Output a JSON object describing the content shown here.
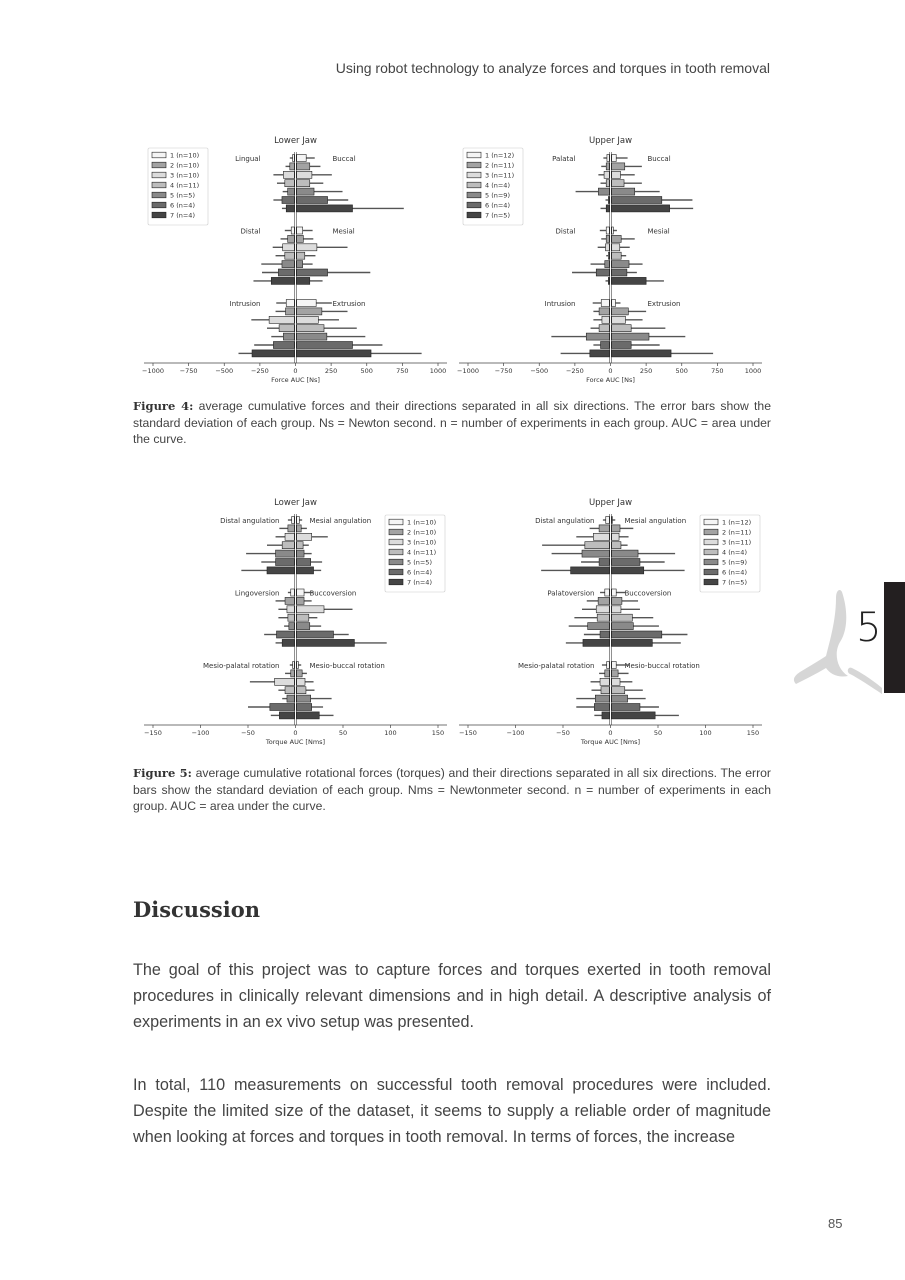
{
  "header": {
    "running_title": "Using robot technology to analyze forces and torques in tooth removal"
  },
  "colors": {
    "group_fills": [
      "#f4f4f4",
      "#a3a3a3",
      "#dcdcdc",
      "#bdbdbd",
      "#8a8a8a",
      "#6b6b6b",
      "#454545"
    ],
    "error_bar": "#555555",
    "chapter_tab": "#231f20"
  },
  "chart_data": [
    {
      "id": "fig4-lower",
      "type": "bar",
      "orientation": "horizontal-diverging",
      "title": "Lower Jaw",
      "xlabel": "Force AUC [Ns]",
      "xlim": [
        -1000,
        1000
      ],
      "xticks": [
        "−1000",
        "−750",
        "−500",
        "−250",
        "0",
        "250",
        "500",
        "750",
        "1000"
      ],
      "xtick_values": [
        -1000,
        -750,
        -500,
        -250,
        0,
        250,
        500,
        750,
        1000
      ],
      "legend": [
        "1 (n=10)",
        "2 (n=10)",
        "3 (n=10)",
        "4 (n=11)",
        "5 (n=5)",
        "6 (n=4)",
        "7 (n=4)"
      ],
      "legend_placement": "top-left",
      "groups": [
        {
          "neg_label": "Lingual",
          "pos_label": "Buccal",
          "neg": [
            -20,
            -40,
            -85,
            -75,
            -55,
            -95,
            -65
          ],
          "neg_sd": [
            20,
            30,
            70,
            55,
            35,
            60,
            30
          ],
          "pos": [
            75,
            100,
            115,
            100,
            130,
            225,
            400
          ],
          "pos_sd": [
            60,
            75,
            140,
            95,
            200,
            145,
            360
          ]
        },
        {
          "neg_label": "Distal",
          "pos_label": "Mesial",
          "neg": [
            -30,
            -55,
            -90,
            -75,
            -95,
            -120,
            -170
          ],
          "neg_sd": [
            45,
            50,
            70,
            65,
            145,
            115,
            125
          ],
          "pos": [
            50,
            55,
            150,
            65,
            50,
            225,
            100
          ],
          "pos_sd": [
            70,
            70,
            215,
            75,
            70,
            300,
            90
          ]
        },
        {
          "neg_label": "Intrusion",
          "pos_label": "Extrusion",
          "neg": [
            -65,
            -70,
            -185,
            -115,
            -85,
            -155,
            -305
          ],
          "neg_sd": [
            70,
            70,
            125,
            85,
            85,
            135,
            95
          ],
          "pos": [
            145,
            185,
            160,
            200,
            220,
            400,
            530
          ],
          "pos_sd": [
            110,
            180,
            145,
            230,
            270,
            210,
            355
          ]
        }
      ]
    },
    {
      "id": "fig4-upper",
      "type": "bar",
      "orientation": "horizontal-diverging",
      "title": "Upper Jaw",
      "xlabel": "Force AUC [Ns]",
      "xlim": [
        -1000,
        1000
      ],
      "xticks": [
        "−1000",
        "−750",
        "−500",
        "−250",
        "0",
        "250",
        "500",
        "750",
        "1000"
      ],
      "xtick_values": [
        -1000,
        -750,
        -500,
        -250,
        0,
        250,
        500,
        750,
        1000
      ],
      "legend": [
        "1 (n=12)",
        "2 (n=11)",
        "3 (n=11)",
        "4 (n=4)",
        "5 (n=9)",
        "6 (n=4)",
        "7 (n=5)"
      ],
      "legend_placement": "top-left",
      "groups": [
        {
          "neg_label": "Palatal",
          "pos_label": "Buccal",
          "neg": [
            -25,
            -30,
            -45,
            -30,
            -85,
            -15,
            -30
          ],
          "neg_sd": [
            25,
            35,
            40,
            40,
            160,
            20,
            40
          ],
          "pos": [
            40,
            100,
            70,
            95,
            170,
            360,
            415
          ],
          "pos_sd": [
            80,
            120,
            100,
            125,
            175,
            215,
            165
          ]
        },
        {
          "neg_label": "Distal",
          "pos_label": "Mesial",
          "neg": [
            -30,
            -30,
            -35,
            -15,
            -40,
            -100,
            -15
          ],
          "neg_sd": [
            45,
            35,
            55,
            15,
            100,
            170,
            20
          ],
          "pos": [
            20,
            75,
            65,
            75,
            130,
            115,
            250
          ],
          "pos_sd": [
            25,
            95,
            70,
            35,
            95,
            70,
            125
          ]
        },
        {
          "neg_label": "Intrusion",
          "pos_label": "Extrusion",
          "neg": [
            -65,
            -80,
            -60,
            -80,
            -170,
            -70,
            -145
          ],
          "neg_sd": [
            60,
            40,
            60,
            60,
            245,
            50,
            205
          ],
          "pos": [
            35,
            125,
            105,
            145,
            270,
            145,
            425
          ],
          "pos_sd": [
            35,
            125,
            120,
            240,
            255,
            200,
            295
          ]
        }
      ]
    },
    {
      "id": "fig5-lower",
      "type": "bar",
      "orientation": "horizontal-diverging",
      "title": "Lower Jaw",
      "xlabel": "Torque AUC [Nms]",
      "xlim": [
        -150,
        150
      ],
      "xticks": [
        "−150",
        "−100",
        "−50",
        "0",
        "50",
        "100",
        "150"
      ],
      "xtick_values": [
        -150,
        -100,
        -50,
        0,
        50,
        100,
        150
      ],
      "legend": [
        "1 (n=10)",
        "2 (n=10)",
        "3 (n=10)",
        "4 (n=11)",
        "5 (n=5)",
        "6 (n=4)",
        "7 (n=4)"
      ],
      "legend_placement": "top-right",
      "groups": [
        {
          "neg_label": "Distal angulation",
          "pos_label": "Mesial angulation",
          "neg": [
            -4,
            -8,
            -11,
            -14,
            -21,
            -21,
            -30
          ],
          "neg_sd": [
            4,
            9,
            10,
            16,
            31,
            15,
            27
          ],
          "pos": [
            4,
            6,
            17,
            8,
            9,
            16,
            19
          ],
          "pos_sd": [
            3,
            6,
            17,
            6,
            8,
            12,
            8
          ]
        },
        {
          "neg_label": "Lingoversion",
          "pos_label": "Buccoversion",
          "neg": [
            -5,
            -11,
            -9,
            -8,
            -7,
            -20,
            -14
          ],
          "neg_sd": [
            3,
            10,
            9,
            10,
            5,
            13,
            7
          ],
          "pos": [
            9,
            9,
            30,
            14,
            15,
            40,
            62
          ],
          "pos_sd": [
            10,
            8,
            30,
            9,
            12,
            16,
            34
          ]
        },
        {
          "neg_label": "Mesio-palatal rotation",
          "pos_label": "Mesio-buccal rotation",
          "neg": [
            -3,
            -5,
            -22,
            -11,
            -9,
            -27,
            -17
          ],
          "neg_sd": [
            3,
            6,
            26,
            7,
            5,
            23,
            9
          ],
          "pos": [
            3,
            7,
            10,
            11,
            16,
            17,
            25
          ],
          "pos_sd": [
            3,
            5,
            9,
            9,
            22,
            12,
            15
          ]
        }
      ]
    },
    {
      "id": "fig5-upper",
      "type": "bar",
      "orientation": "horizontal-diverging",
      "title": "Upper Jaw",
      "xlabel": "Torque AUC [Nms]",
      "xlim": [
        -150,
        150
      ],
      "xticks": [
        "−150",
        "−100",
        "−50",
        "0",
        "50",
        "100",
        "150"
      ],
      "xtick_values": [
        -150,
        -100,
        -50,
        0,
        50,
        100,
        150
      ],
      "legend": [
        "1 (n=12)",
        "2 (n=11)",
        "3 (n=11)",
        "4 (n=4)",
        "5 (n=9)",
        "6 (n=4)",
        "7 (n=5)"
      ],
      "legend_placement": "top-right",
      "groups": [
        {
          "neg_label": "Distal angulation",
          "pos_label": "Mesial angulation",
          "neg": [
            -5,
            -12,
            -18,
            -27,
            -30,
            -12,
            -42
          ],
          "neg_sd": [
            3,
            10,
            18,
            45,
            32,
            19,
            31
          ],
          "pos": [
            2,
            10,
            9,
            11,
            29,
            31,
            35
          ],
          "pos_sd": [
            3,
            14,
            10,
            7,
            39,
            26,
            43
          ]
        },
        {
          "neg_label": "Palatoversion",
          "pos_label": "Buccoversion",
          "neg": [
            -6,
            -13,
            -15,
            -14,
            -24,
            -11,
            -29
          ],
          "neg_sd": [
            5,
            12,
            15,
            24,
            20,
            17,
            18
          ],
          "pos": [
            6,
            12,
            11,
            23,
            24,
            54,
            44
          ],
          "pos_sd": [
            10,
            17,
            20,
            22,
            27,
            27,
            30
          ]
        },
        {
          "neg_label": "Mesio-palatal rotation",
          "pos_label": "Mesio-buccal rotation",
          "neg": [
            -4,
            -6,
            -11,
            -10,
            -16,
            -17,
            -9
          ],
          "neg_sd": [
            5,
            6,
            10,
            10,
            20,
            19,
            8
          ],
          "pos": [
            6,
            8,
            10,
            15,
            18,
            31,
            47
          ],
          "pos_sd": [
            14,
            11,
            13,
            19,
            19,
            20,
            25
          ]
        }
      ]
    }
  ],
  "figure4_caption": {
    "label": "Figure 4:",
    "text": " average cumulative forces and their directions separated in all six directions. The error bars show the standard deviation of each group.  Ns = Newton second. n = number of experiments in each group. AUC = area under the curve."
  },
  "figure5_caption": {
    "label": "Figure 5:",
    "text": " average cumulative rotational forces (torques) and their directions separated in all six directions. The error bars show the standard deviation of each group. Nms = Newtonmeter second. n = number of experiments in each group. AUC = area under the curve."
  },
  "discussion": {
    "heading": "Discussion",
    "paragraphs": [
      "The goal of this project was to capture forces and torques exerted in tooth removal procedures in clinically relevant dimensions and in high detail. A descriptive analysis of experiments in an ex vivo setup was presented.",
      "In total, 110 measurements on successful tooth removal procedures were included. Despite the limited size of the dataset, it seems to supply a reliable order of magnitude when looking at forces and torques in tooth removal. In terms of forces, the increase"
    ]
  },
  "chapter": {
    "number": "5"
  },
  "page_number": "85"
}
